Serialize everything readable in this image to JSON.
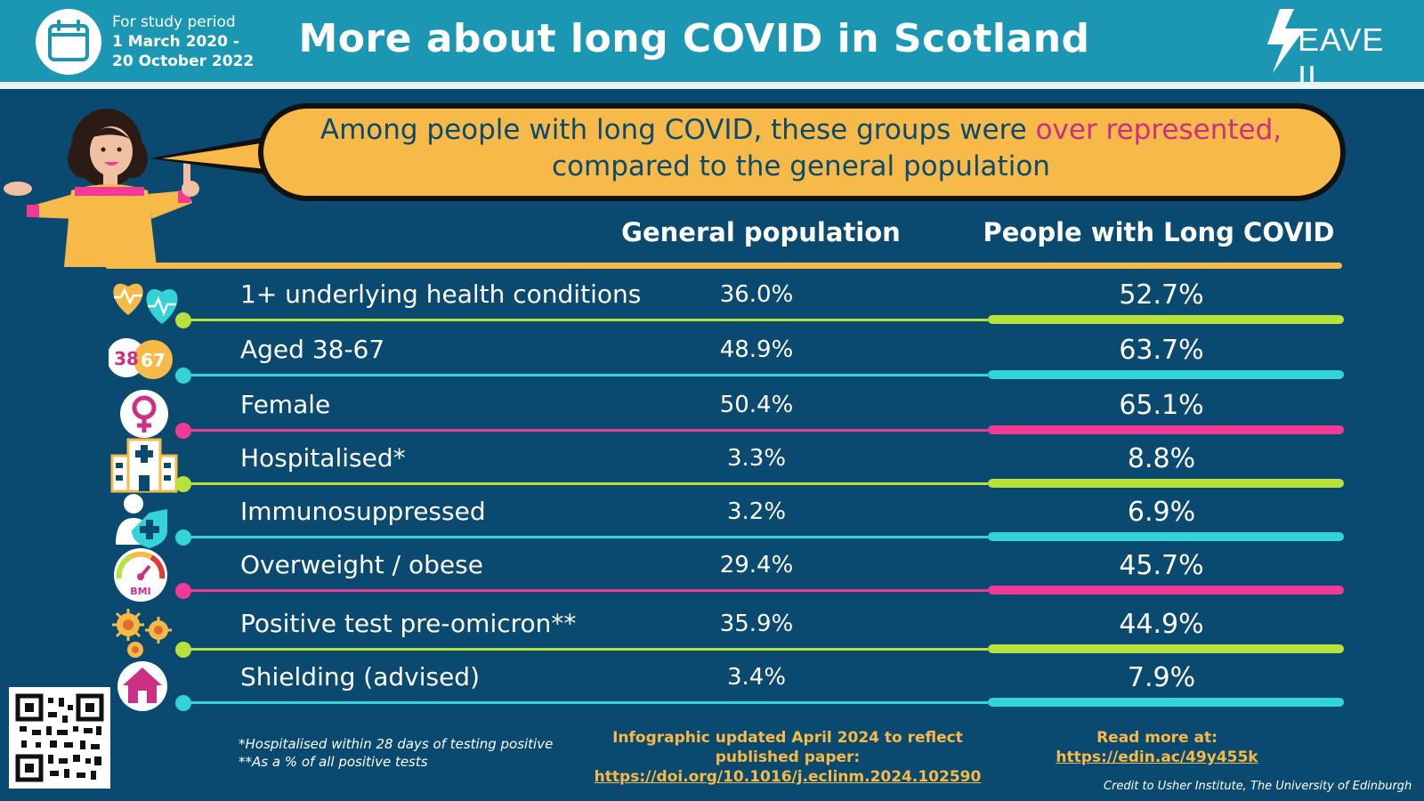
{
  "header": {
    "period_label": "For study period",
    "period_start": "1 March 2020 -",
    "period_end": "20 October 2022",
    "title": "More about long COVID in Scotland",
    "logo_text": "EAVE II"
  },
  "bubble": {
    "text_before": "Among people with long COVID, these groups were ",
    "text_highlight": "over represented,",
    "text_after": "compared to the general population",
    "highlight_color": "#cc2f86"
  },
  "columns": {
    "general": "General population",
    "long_covid": "People with Long COVID"
  },
  "rows": [
    {
      "label": "1+ underlying health conditions",
      "general": "36.0%",
      "long_covid": "52.7%",
      "color": "#b7e23b",
      "icon": "heart-pulse-icon"
    },
    {
      "label": "Aged 38-67",
      "general": "48.9%",
      "long_covid": "63.7%",
      "color": "#32d4d6",
      "icon": "age-badge-icon",
      "badge_a": "38",
      "badge_b": "67"
    },
    {
      "label": "Female",
      "general": "50.4%",
      "long_covid": "65.1%",
      "color": "#f03a96",
      "icon": "female-symbol-icon"
    },
    {
      "label": "Hospitalised*",
      "general": "3.3%",
      "long_covid": "8.8%",
      "color": "#b7e23b",
      "icon": "hospital-icon"
    },
    {
      "label": "Immunosuppressed",
      "general": "3.2%",
      "long_covid": "6.9%",
      "color": "#32d4d6",
      "icon": "immune-shield-icon"
    },
    {
      "label": "Overweight / obese",
      "general": "29.4%",
      "long_covid": "45.7%",
      "color": "#f03a96",
      "icon": "bmi-gauge-icon",
      "badge": "BMI"
    },
    {
      "label": "Positive test pre-omicron**",
      "general": "35.9%",
      "long_covid": "44.9%",
      "color": "#b7e23b",
      "icon": "virus-icon"
    },
    {
      "label": "Shielding (advised)",
      "general": "3.4%",
      "long_covid": "7.9%",
      "color": "#32d4d6",
      "icon": "home-icon"
    }
  ],
  "footer": {
    "footnote_1": "*Hospitalised within 28 days of testing positive",
    "footnote_2": "**As a % of all positive tests",
    "update_line_1": "Infographic updated April 2024 to reflect",
    "update_line_2": "published paper:",
    "update_link": "https://doi.org/10.1016/j.eclinm.2024.102590",
    "read_more_label": "Read more at:",
    "read_more_link": "https://edin.ac/49y455k",
    "credit": "Credit to  Usher Institute, The University of Edinburgh"
  }
}
